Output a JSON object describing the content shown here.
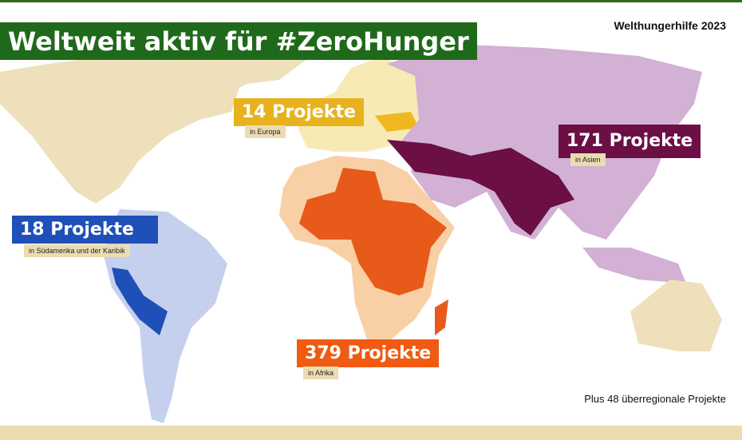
{
  "header": {
    "title": "Weltweit aktiv für #ZeroHunger",
    "source": "Welthungerhilfe 2023"
  },
  "regions": [
    {
      "count": "14 Projekte",
      "label": "in Europa"
    },
    {
      "count": "171 Projekte",
      "label": "in Asien"
    },
    {
      "count": "18 Projekte",
      "label": "in Südamerika und der Karibik"
    },
    {
      "count": "379 Projekte",
      "label": "in Afrika"
    }
  ],
  "footer": {
    "note": "Plus 48 überregionale Projekte"
  }
}
